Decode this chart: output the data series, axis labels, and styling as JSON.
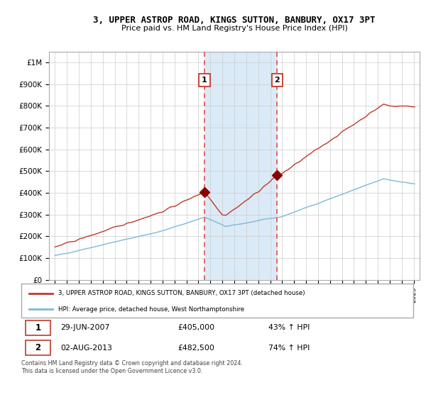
{
  "title": "3, UPPER ASTROP ROAD, KINGS SUTTON, BANBURY, OX17 3PT",
  "subtitle": "Price paid vs. HM Land Registry's House Price Index (HPI)",
  "legend_line1": "3, UPPER ASTROP ROAD, KINGS SUTTON, BANBURY, OX17 3PT (detached house)",
  "legend_line2": "HPI: Average price, detached house, West Northamptonshire",
  "sale1_date": "29-JUN-2007",
  "sale1_price": "£405,000",
  "sale1_hpi": "43% ↑ HPI",
  "sale1_label": "1",
  "sale2_date": "02-AUG-2013",
  "sale2_price": "£482,500",
  "sale2_hpi": "74% ↑ HPI",
  "sale2_label": "2",
  "footnote": "Contains HM Land Registry data © Crown copyright and database right 2024.\nThis data is licensed under the Open Government Licence v3.0.",
  "hpi_color": "#7db8d8",
  "price_color": "#c0392b",
  "sale_dot_color": "#8b0000",
  "shading_color": "#dbeaf7",
  "dashed_line_color": "#e05050",
  "background_color": "#ffffff",
  "grid_color": "#cccccc",
  "ylim": [
    0,
    1050000
  ],
  "yticks": [
    0,
    100000,
    200000,
    300000,
    400000,
    500000,
    600000,
    700000,
    800000,
    900000,
    1000000
  ],
  "ytick_labels": [
    "£0",
    "£100K",
    "£200K",
    "£300K",
    "£400K",
    "£500K",
    "£600K",
    "£700K",
    "£800K",
    "£900K",
    "£1M"
  ],
  "sale1_x": 2007.5,
  "sale1_y": 405000,
  "sale2_x": 2013.58,
  "sale2_y": 482500,
  "shade_x1": 2007.5,
  "shade_x2": 2013.58,
  "xlim_start": 1994.5,
  "xlim_end": 2025.5
}
